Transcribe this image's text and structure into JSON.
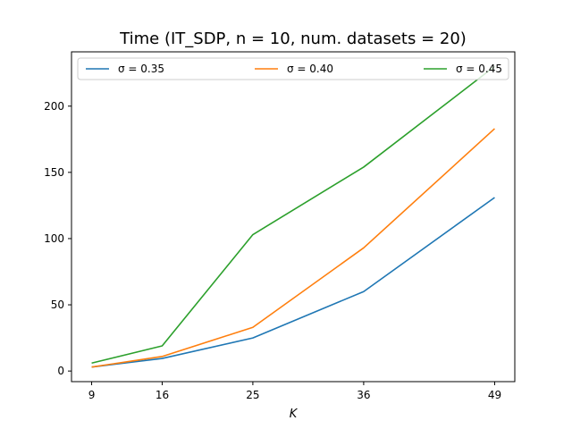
{
  "chart_data": {
    "type": "line",
    "title": "Time (IT_SDP, n = 10, num. datasets = 20)",
    "xlabel": "K",
    "ylabel": "",
    "x": [
      9,
      16,
      25,
      36,
      49
    ],
    "x_ticks": [
      "9",
      "16",
      "25",
      "36",
      "49"
    ],
    "y_ticks": [
      0,
      50,
      100,
      150,
      200
    ],
    "ylim": [
      -8,
      241
    ],
    "grid": false,
    "legend_position": "top",
    "series": [
      {
        "name": "σ = 0.35",
        "color": "#1f77b4",
        "values": [
          3,
          9.5,
          25,
          60,
          131
        ]
      },
      {
        "name": "σ = 0.40",
        "color": "#ff7f0e",
        "values": [
          3,
          11,
          33,
          93,
          183
        ]
      },
      {
        "name": "σ = 0.45",
        "color": "#2ca02c",
        "values": [
          6,
          19,
          103,
          154,
          230
        ]
      }
    ]
  }
}
